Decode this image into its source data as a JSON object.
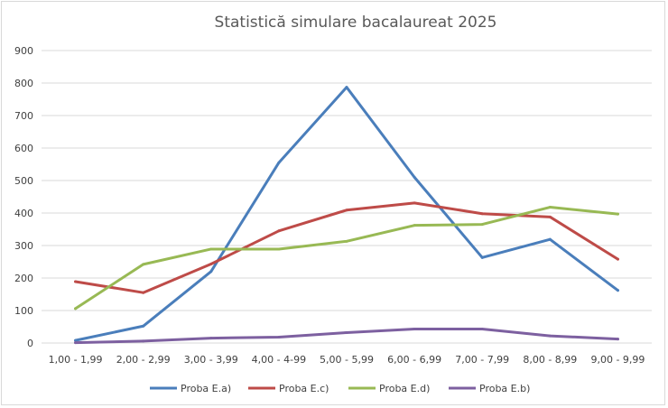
{
  "chart_data": {
    "type": "line",
    "title": "Statistică simulare bacalaureat 2025",
    "xlabel": "",
    "ylabel": "",
    "ylim": [
      0,
      900
    ],
    "y_ticks": [
      0,
      100,
      200,
      300,
      400,
      500,
      600,
      700,
      800,
      900
    ],
    "y_tick_labels": [
      "0",
      "100",
      "200",
      "300",
      "400",
      "500",
      "600",
      "700",
      "800",
      "900"
    ],
    "grid": true,
    "legend_position": "bottom",
    "categories": [
      "1,00 - 1,99",
      "2,00 - 2,99",
      "3,00 - 3,99",
      "4,00 - 4-99",
      "5,00 - 5,99",
      "6,00 - 6,99",
      "7,00 - 7,99",
      "8,00 - 8,99",
      "9,00 - 9,99"
    ],
    "series": [
      {
        "name": "Proba E.a)",
        "color": "#4a7ebb",
        "values": [
          8,
          52,
          220,
          555,
          787,
          510,
          263,
          319,
          162
        ]
      },
      {
        "name": "Proba E.c)",
        "color": "#be4b48",
        "values": [
          189,
          155,
          243,
          345,
          409,
          431,
          398,
          388,
          258
        ]
      },
      {
        "name": "Proba E.d)",
        "color": "#98b954",
        "values": [
          106,
          242,
          289,
          289,
          313,
          362,
          365,
          418,
          397
        ]
      },
      {
        "name": "Proba E.b)",
        "color": "#7d60a0",
        "values": [
          1,
          6,
          15,
          18,
          32,
          43,
          43,
          22,
          12
        ]
      }
    ]
  }
}
